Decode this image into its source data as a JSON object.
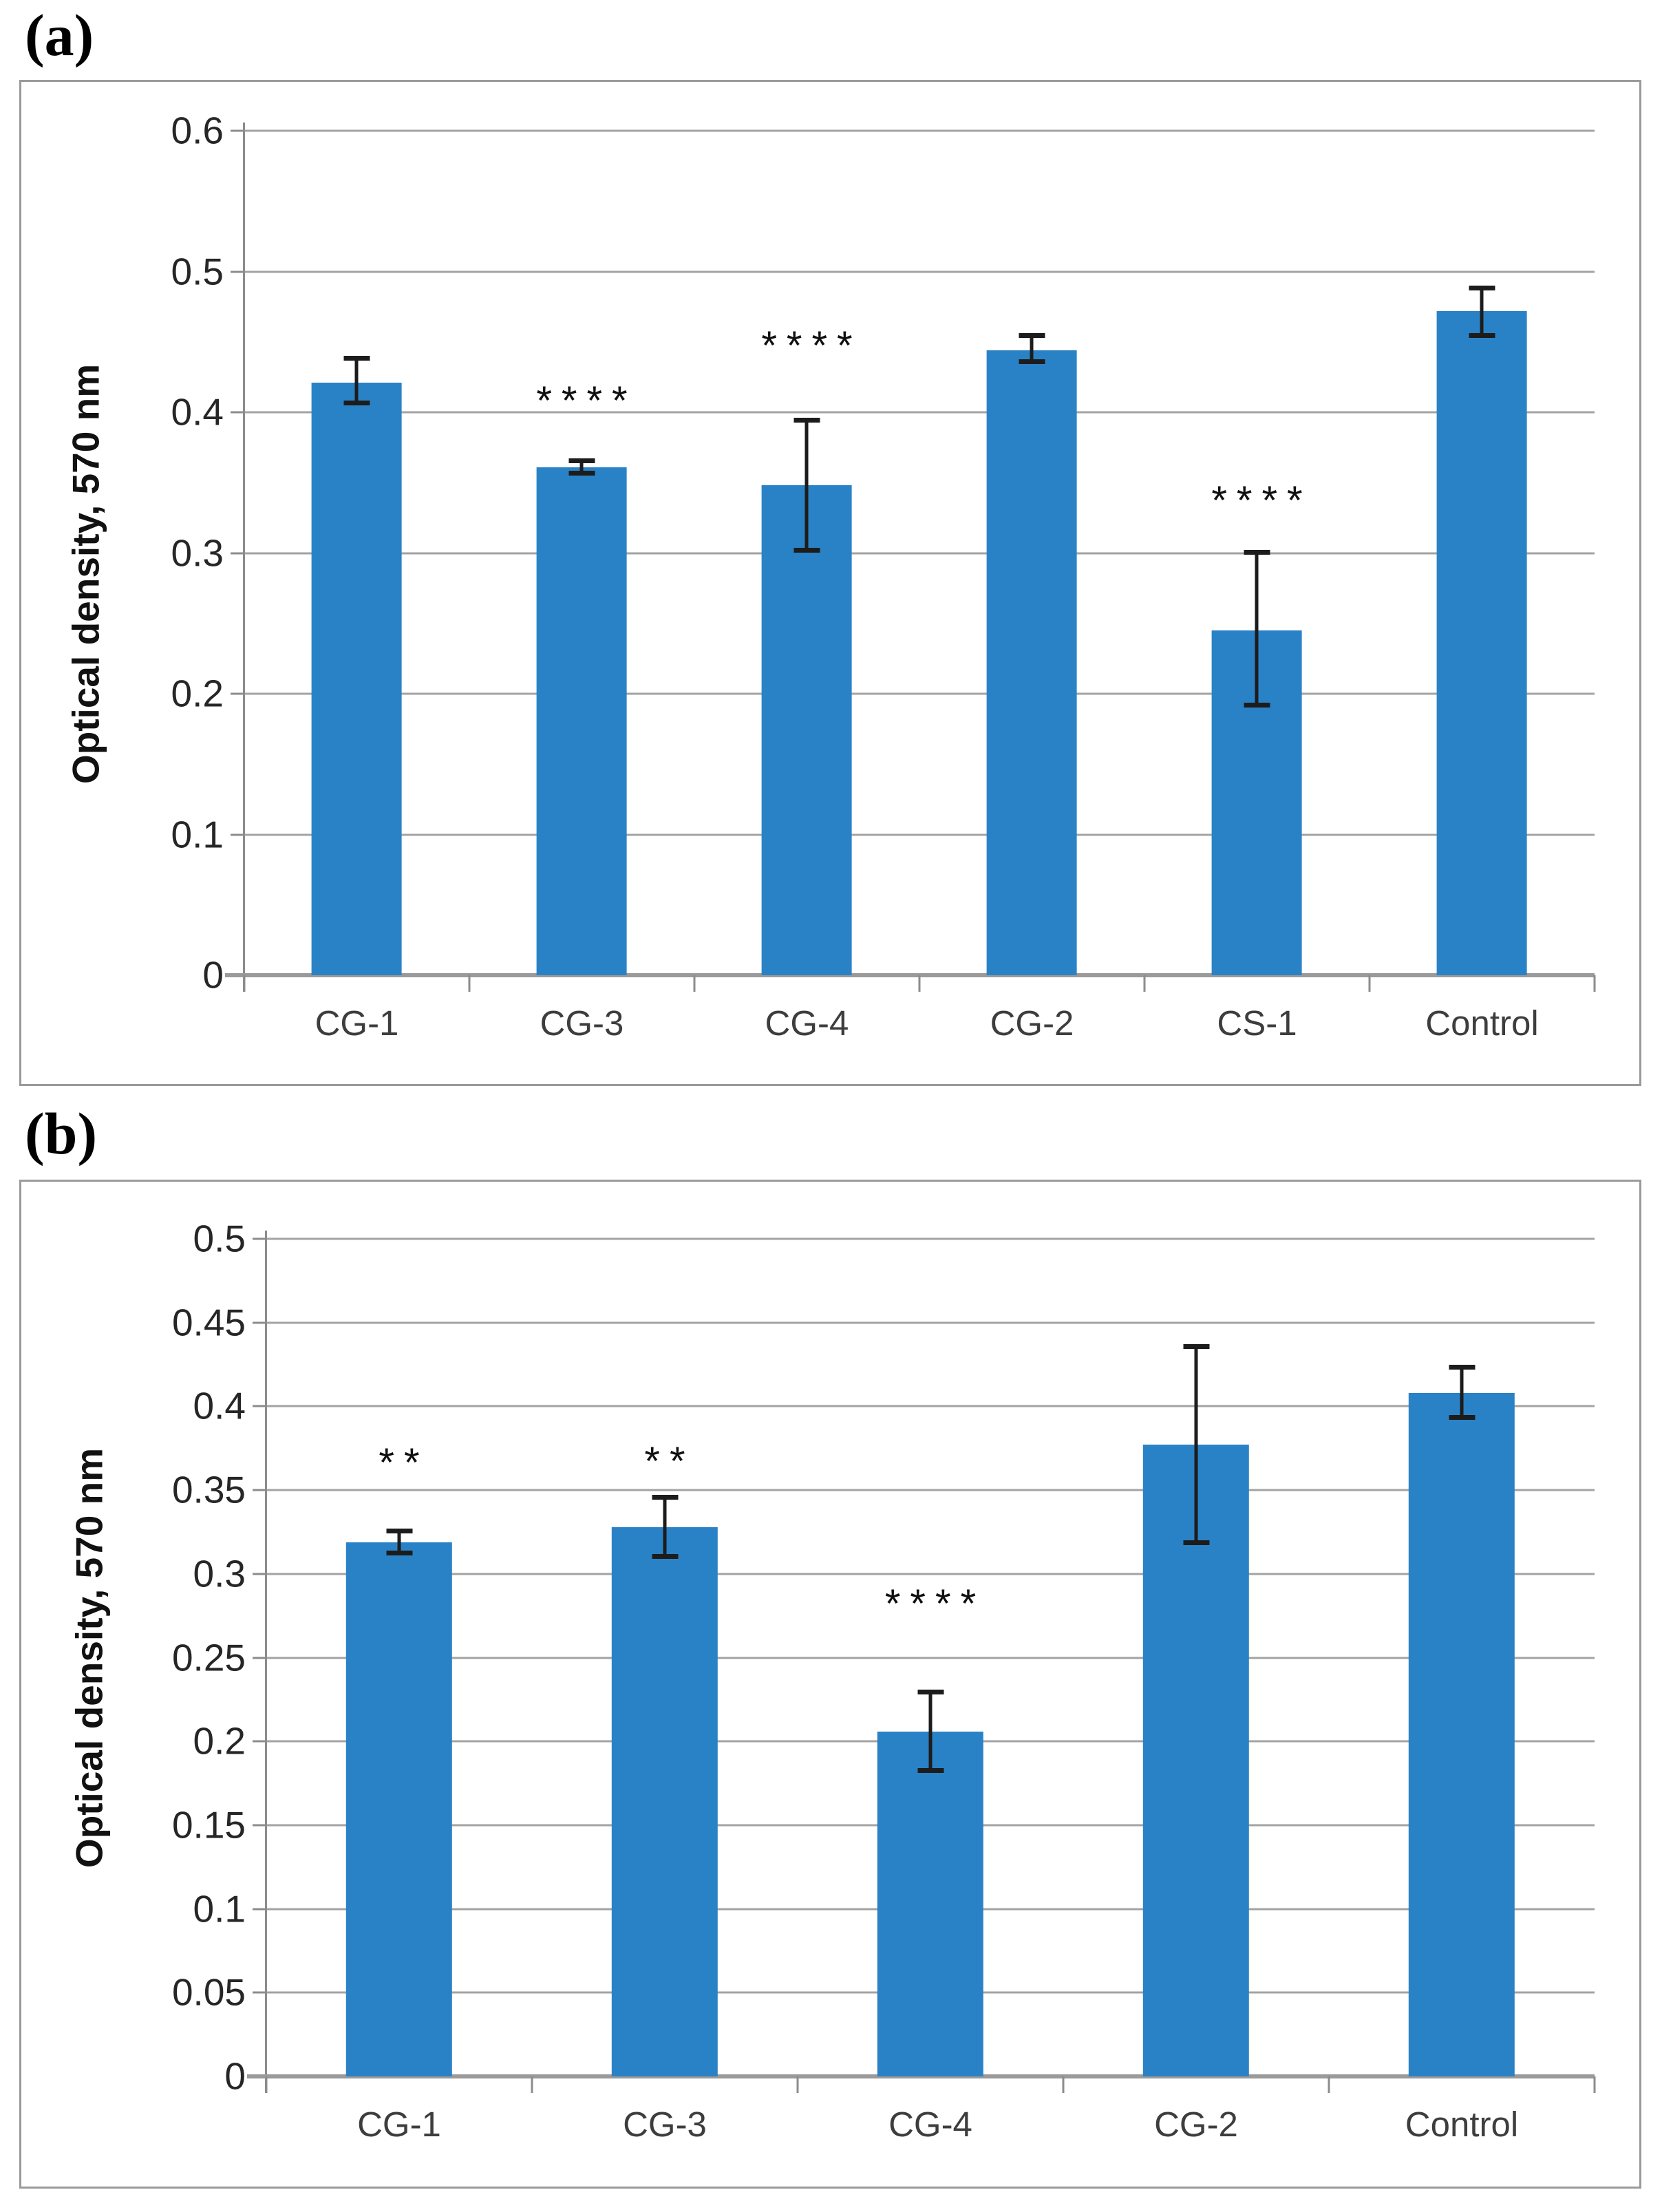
{
  "figure": {
    "panel_a_label": "(a)",
    "panel_b_label": "(b)"
  },
  "colors": {
    "bar": "#2a82c6",
    "gridline": "#a3a3a3",
    "axis": "#8c8c8c",
    "error_bar": "#1c1c1c",
    "tick_text": "#262626",
    "category_text": "#3d3d3d",
    "panel_border": "#9a9a9a"
  },
  "chart_data": [
    {
      "type": "bar",
      "panel": "a",
      "title": "",
      "xlabel": "",
      "ylabel": "Optical density, 570 nm",
      "ylim": [
        0,
        0.6
      ],
      "grid": true,
      "legend_position": "none",
      "ytick_values": [
        0.6,
        0.5,
        0.4,
        0.3,
        0.2,
        0.1,
        0
      ],
      "ytick_labels": [
        "0.6",
        "0.5",
        "0.4",
        "0.3",
        "0.2",
        "0.1",
        "0"
      ],
      "categories": [
        "CG-1",
        "CG-3",
        "CG-4",
        "CG-2",
        "CS-1",
        "Control"
      ],
      "values": [
        0.421,
        0.361,
        0.348,
        0.444,
        0.245,
        0.472
      ],
      "error_low": [
        0.405,
        0.355,
        0.3,
        0.434,
        0.19,
        0.453
      ],
      "error_high": [
        0.44,
        0.367,
        0.396,
        0.456,
        0.302,
        0.49
      ],
      "significance": [
        {
          "index": 1,
          "text": "****",
          "y": 0.408
        },
        {
          "index": 2,
          "text": "****",
          "y": 0.447
        },
        {
          "index": 4,
          "text": "****",
          "y": 0.337
        }
      ]
    },
    {
      "type": "bar",
      "panel": "b",
      "title": "",
      "xlabel": "",
      "ylabel": "Optical density, 570 nm",
      "ylim": [
        0,
        0.5
      ],
      "grid": true,
      "legend_position": "none",
      "ytick_values": [
        0.5,
        0.45,
        0.4,
        0.35,
        0.3,
        0.25,
        0.2,
        0.15,
        0.1,
        0.05,
        0
      ],
      "ytick_labels": [
        "0.5",
        "0.45",
        "0.4",
        "0.35",
        "0.3",
        "0.25",
        "0.2",
        "0.15",
        "0.1",
        "0.05",
        "0"
      ],
      "categories": [
        "CG-1",
        "CG-3",
        "CG-4",
        "CG-2",
        "Control"
      ],
      "values": [
        0.319,
        0.328,
        0.206,
        0.377,
        0.408
      ],
      "error_low": [
        0.311,
        0.309,
        0.181,
        0.317,
        0.392
      ],
      "error_high": [
        0.327,
        0.347,
        0.231,
        0.437,
        0.425
      ],
      "significance": [
        {
          "index": 0,
          "text": "**",
          "y": 0.366
        },
        {
          "index": 1,
          "text": "**",
          "y": 0.367
        },
        {
          "index": 2,
          "text": "****",
          "y": 0.282
        }
      ]
    }
  ]
}
